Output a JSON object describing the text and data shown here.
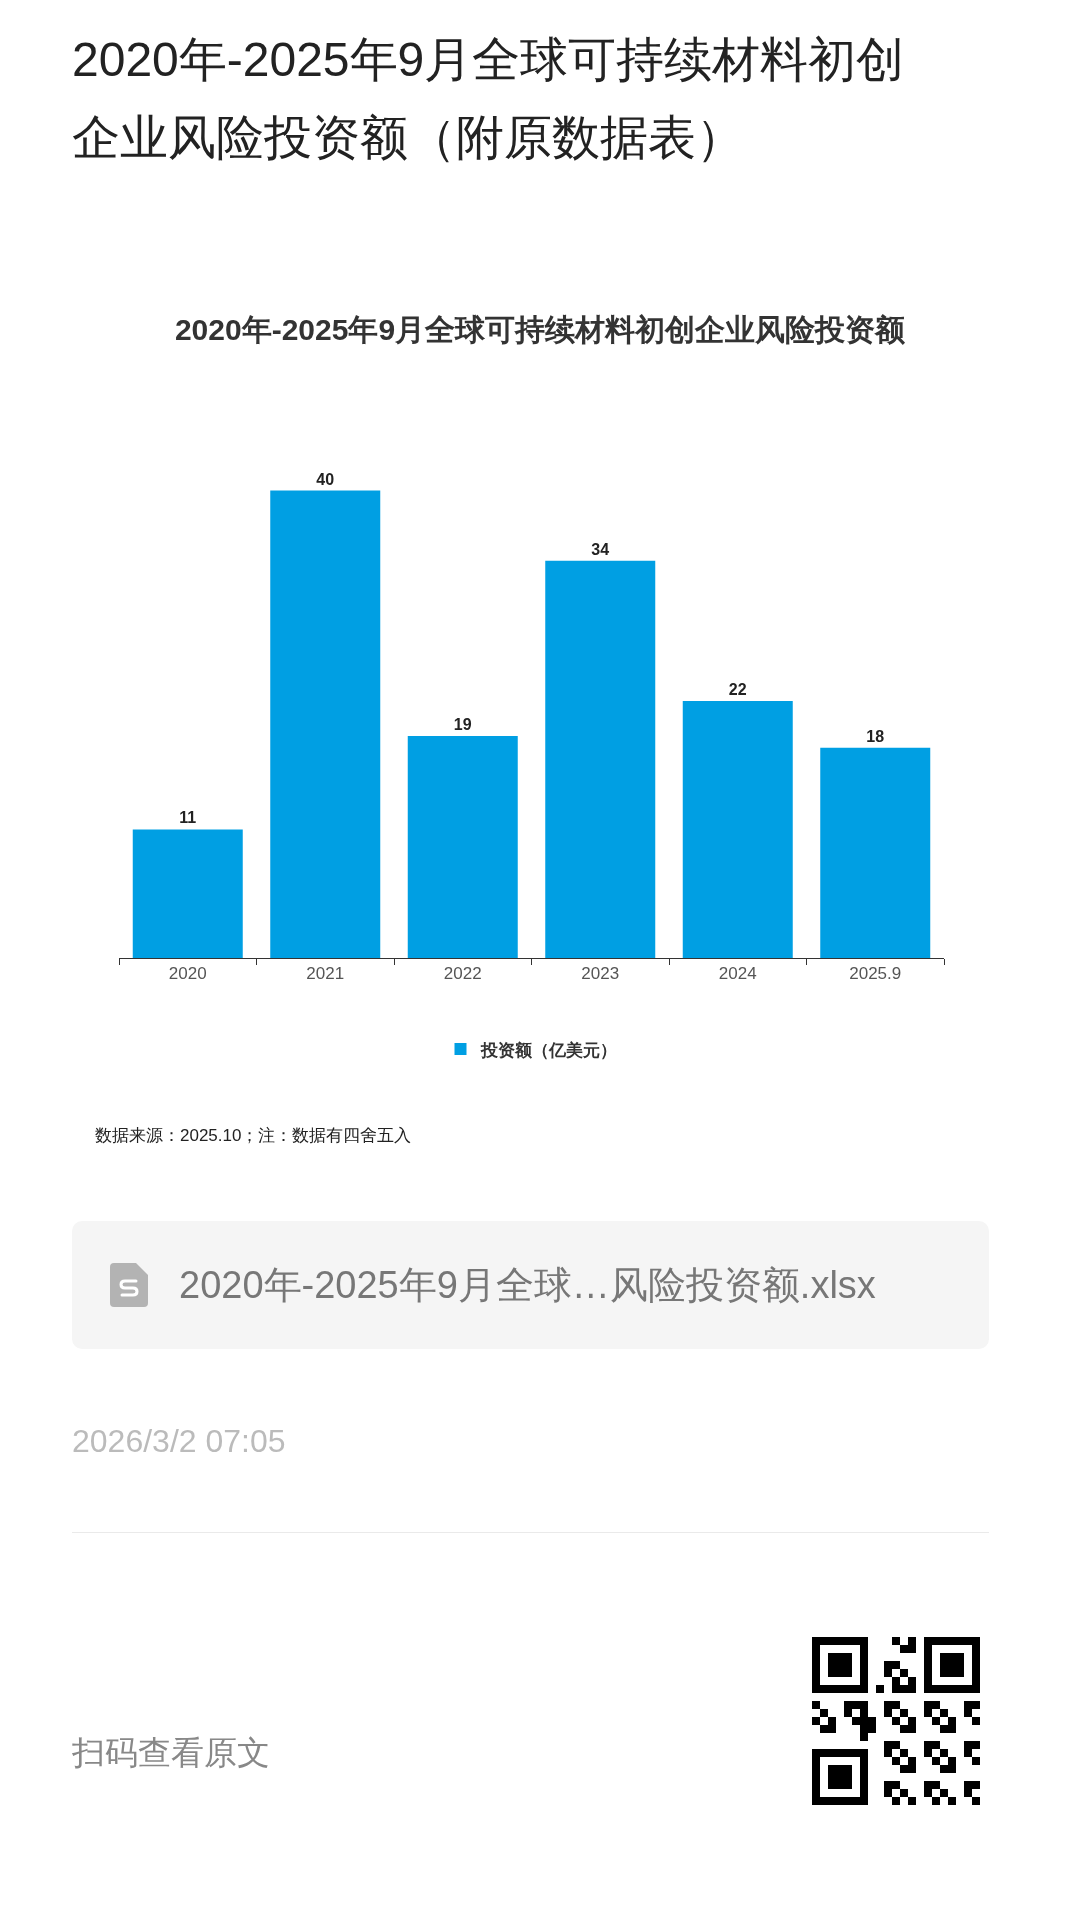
{
  "chart_data": {
    "type": "bar",
    "title": "2020年-2025年9月全球可持续材料初创企业风险投资额（附原数据表）",
    "subtitle": "2020年-2025年9月全球可持续材料初创企业风险投资额",
    "categories": [
      "2020",
      "2021",
      "2022",
      "2023",
      "2024",
      "2025.9"
    ],
    "series": [
      {
        "name": "投资额（亿美元）",
        "color": "#009fe3",
        "values": [
          11,
          40,
          19,
          34,
          22,
          18
        ]
      }
    ],
    "data_labels": true,
    "legend": "bottom",
    "annotations": [
      "数据来源：2025.10；注：数据有四舍五入",
      "2020年-2025年9月全球…风险投资额.xlsx",
      "2026/3/2 07:05",
      "扫码查看原文"
    ]
  }
}
